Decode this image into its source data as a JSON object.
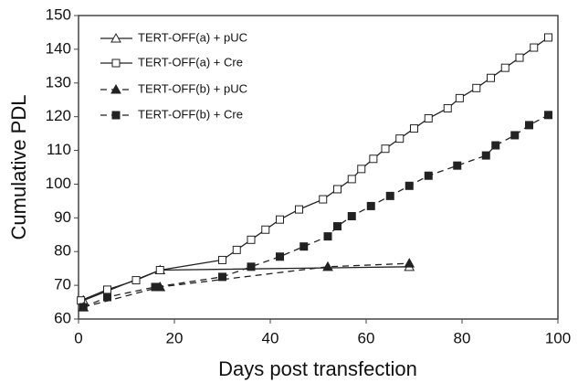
{
  "chart_data": {
    "type": "line",
    "xlabel": "Days post transfection",
    "ylabel": "Cumulative PDL",
    "xlim": [
      0,
      100
    ],
    "xticks": [
      0,
      20,
      40,
      60,
      80,
      100
    ],
    "ylim": [
      60,
      150
    ],
    "yticks": [
      60,
      70,
      80,
      90,
      100,
      110,
      120,
      130,
      140,
      150
    ],
    "series": [
      {
        "name": "TERT-OFF(a) + pUC",
        "color": "#222222",
        "dash": "solid",
        "marker": "triangle-open",
        "x": [
          1,
          17,
          69
        ],
        "values": [
          65.5,
          74.5,
          75.5
        ]
      },
      {
        "name": "TERT-OFF(a) + Cre",
        "color": "#222222",
        "dash": "solid",
        "marker": "square-open",
        "x": [
          0.5,
          6,
          12,
          17,
          30,
          33,
          36,
          39,
          42,
          46,
          51,
          54,
          57,
          59,
          61.5,
          64,
          67,
          70,
          73,
          77,
          79.5,
          83,
          86,
          89,
          92,
          95,
          98
        ],
        "values": [
          65.5,
          68.7,
          71.5,
          74.5,
          77.5,
          80.5,
          83.5,
          86.5,
          89.5,
          92.5,
          95.5,
          98.5,
          101.5,
          104.5,
          107.5,
          110.5,
          113.5,
          116.5,
          119.5,
          122.5,
          125.5,
          128.5,
          131.5,
          134.5,
          137.5,
          140.5,
          143.5
        ]
      },
      {
        "name": "TERT-OFF(b) + pUC",
        "color": "#222222",
        "dash": "dashed",
        "marker": "triangle-filled",
        "x": [
          1,
          17,
          52,
          69
        ],
        "values": [
          63.5,
          69.5,
          75.5,
          76.5
        ]
      },
      {
        "name": "TERT-OFF(b) + Cre",
        "color": "#222222",
        "dash": "dashed",
        "marker": "square-filled",
        "x": [
          1,
          6,
          16,
          30,
          36,
          42,
          47,
          52,
          54,
          57,
          61,
          65,
          69,
          73,
          79,
          85,
          87,
          91,
          94,
          98
        ],
        "values": [
          63.5,
          66.5,
          69.5,
          72.5,
          75.5,
          78.5,
          81.5,
          84.5,
          87.5,
          90.5,
          93.5,
          96.5,
          99.5,
          102.5,
          105.5,
          108.5,
          111.5,
          114.5,
          117.5,
          120.5
        ]
      }
    ]
  }
}
